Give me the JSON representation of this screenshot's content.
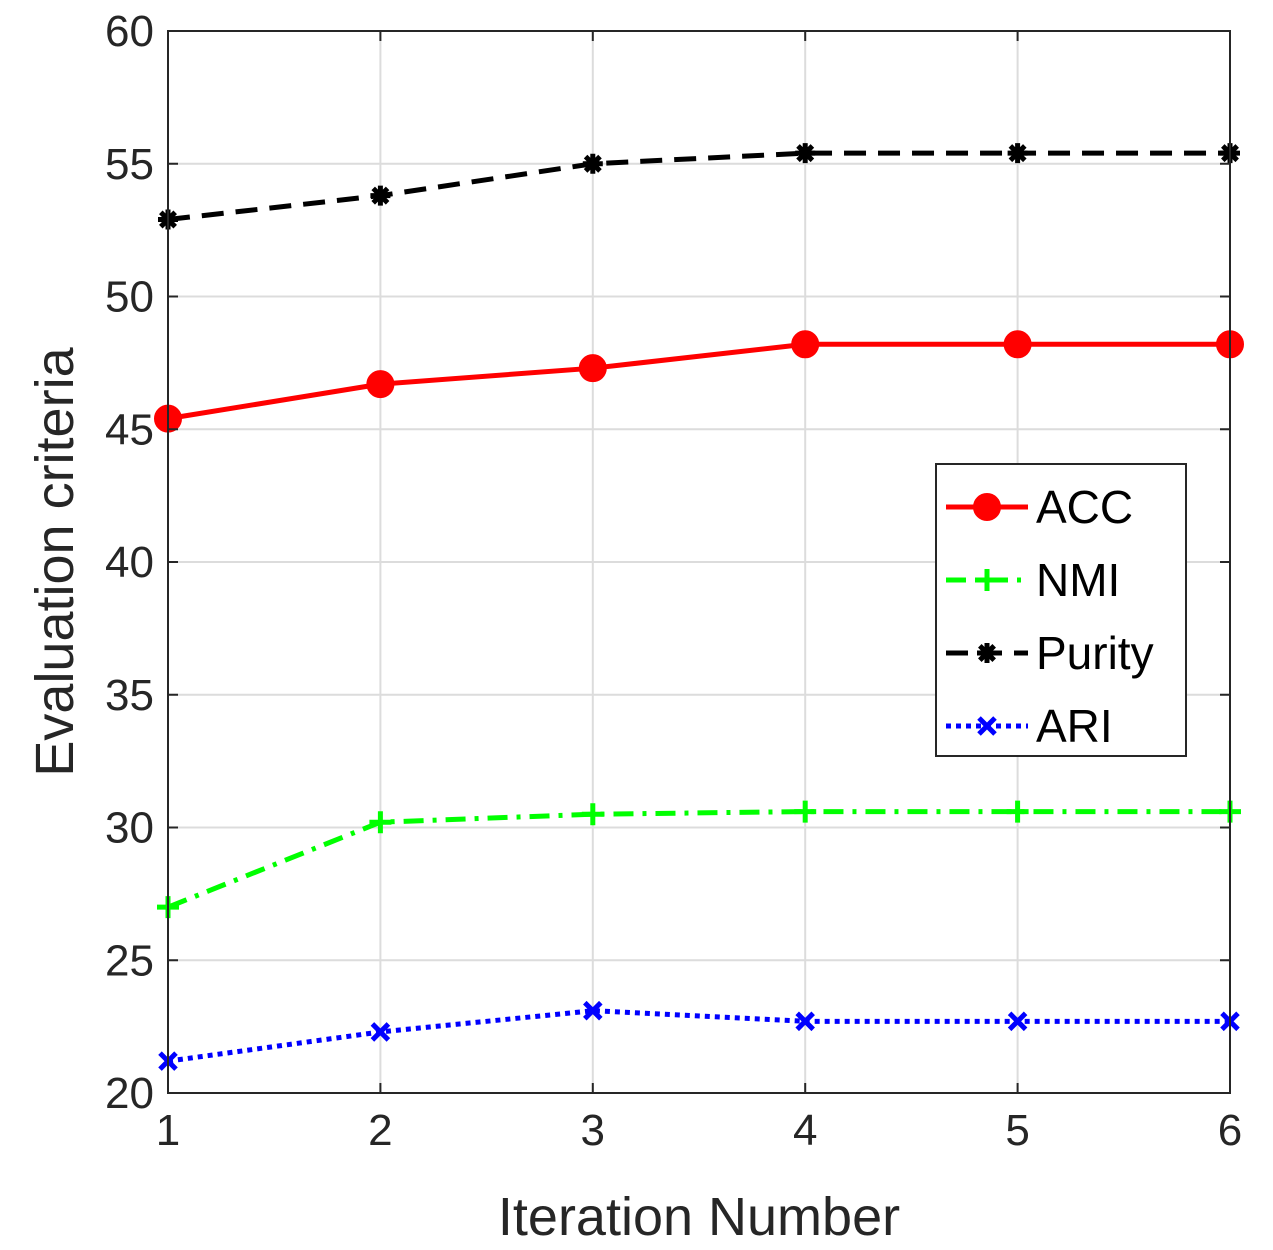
{
  "chart_data": {
    "type": "line",
    "title": "",
    "xlabel": "Iteration Number",
    "ylabel": "Evaluation criteria",
    "x": [
      1,
      2,
      3,
      4,
      5,
      6
    ],
    "xlim": [
      1,
      6
    ],
    "ylim": [
      20,
      60
    ],
    "xticks": [
      1,
      2,
      3,
      4,
      5,
      6
    ],
    "yticks": [
      20,
      25,
      30,
      35,
      40,
      45,
      50,
      55,
      60
    ],
    "grid": true,
    "legend_position": "right",
    "series": [
      {
        "name": "ACC",
        "values": [
          45.4,
          46.7,
          47.3,
          48.2,
          48.2,
          48.2
        ],
        "color": "#ff0000",
        "line_style": "solid",
        "marker": "circle"
      },
      {
        "name": "NMI",
        "values": [
          27.0,
          30.2,
          30.5,
          30.6,
          30.6,
          30.6
        ],
        "color": "#00ff00",
        "line_style": "dashdot",
        "marker": "plus"
      },
      {
        "name": "Purity",
        "values": [
          52.9,
          53.8,
          55.0,
          55.4,
          55.4,
          55.4
        ],
        "color": "#000000",
        "line_style": "dashed",
        "marker": "asterisk"
      },
      {
        "name": "ARI",
        "values": [
          21.2,
          22.3,
          23.1,
          22.7,
          22.7,
          22.7
        ],
        "color": "#0000ff",
        "line_style": "dotted",
        "marker": "cross"
      }
    ]
  }
}
